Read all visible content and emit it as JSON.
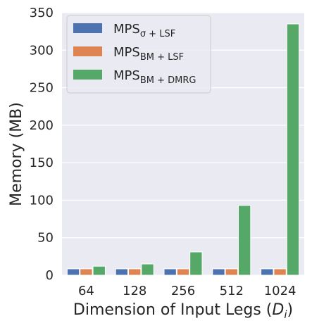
{
  "chart_data": {
    "type": "bar",
    "categories": [
      "64",
      "128",
      "256",
      "512",
      "1024"
    ],
    "series": [
      {
        "name_main": "MPS",
        "name_sub": "σ + LSF",
        "color": "#4c72b0",
        "values": [
          8.5,
          8.5,
          8.5,
          8.5,
          8.5
        ]
      },
      {
        "name_main": "MPS",
        "name_sub": "BM + LSF",
        "color": "#dd8452",
        "values": [
          8.5,
          8.5,
          8.5,
          8.5,
          8.5
        ]
      },
      {
        "name_main": "MPS",
        "name_sub": "BM + DMRG",
        "color": "#55a868",
        "values": [
          12,
          15,
          31,
          93,
          335
        ]
      }
    ],
    "title": "",
    "xlabel_main": "Dimension of Input Legs (",
    "xlabel_var": "D",
    "xlabel_sub": "i",
    "xlabel_close": ")",
    "ylabel": "Memory (MB)",
    "ylim": [
      0,
      350
    ],
    "yticks": [
      0,
      50,
      100,
      150,
      200,
      250,
      300,
      350
    ],
    "grid": true,
    "background": "#eaeaf2",
    "legend_position": "upper-left"
  }
}
